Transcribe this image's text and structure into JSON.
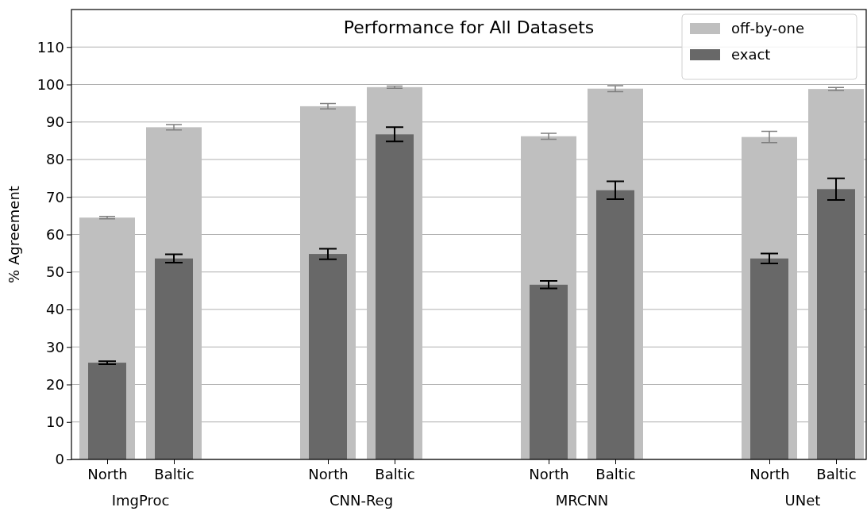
{
  "chart_data": {
    "type": "bar",
    "title": "Performance for All Datasets",
    "ylabel": "% Agreement",
    "categories": [
      "North",
      "Baltic",
      "North",
      "Baltic",
      "North",
      "Baltic",
      "North",
      "Baltic"
    ],
    "annotations": [
      "ImgProc",
      "CNN-Reg",
      "MRCNN",
      "UNet"
    ],
    "series": [
      {
        "name": "off-by-one",
        "color": "#bfbfbf",
        "values": [
          64.5,
          88.6,
          94.2,
          99.3,
          86.2,
          98.9,
          86.0,
          98.8
        ],
        "errors": [
          0.3,
          0.7,
          0.7,
          0.3,
          0.8,
          0.8,
          1.5,
          0.4
        ]
      },
      {
        "name": "exact",
        "color": "#686868",
        "values": [
          25.8,
          53.6,
          54.8,
          86.7,
          46.6,
          71.8,
          53.6,
          72.1
        ],
        "errors": [
          0.4,
          1.1,
          1.4,
          1.9,
          1.0,
          2.4,
          1.3,
          2.9
        ]
      }
    ],
    "ylim": [
      0,
      120
    ],
    "yticks": [
      0,
      10,
      20,
      30,
      40,
      50,
      60,
      70,
      80,
      90,
      100,
      110
    ],
    "grid": "y",
    "legend": "top right"
  }
}
